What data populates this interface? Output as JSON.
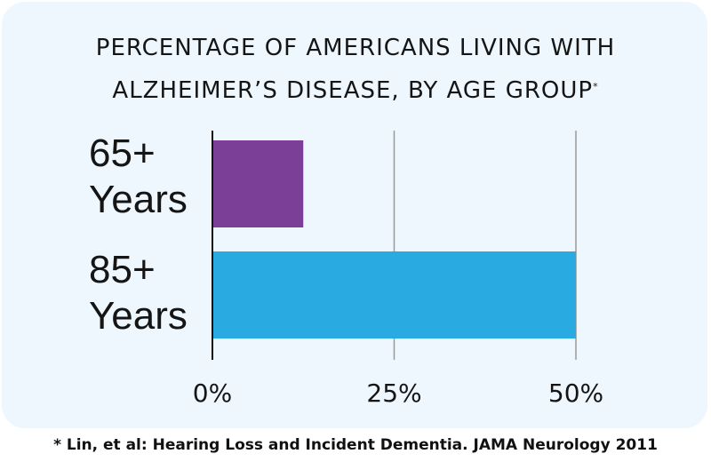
{
  "title_lines": [
    "PERCENTAGE OF AMERICANS LIVING WITH",
    "ALZHEIMER’S DISEASE, BY AGE GROUP"
  ],
  "title_marker": "*",
  "footnote": "* Lin, et al: Hearing Loss and Incident Dementia. JAMA Neurology 2011",
  "colors": {
    "card_background": "#eef7fd",
    "bar_65": "#7b3f98",
    "bar_85": "#29abe2",
    "gridline": "#999999",
    "axis": "#111111"
  },
  "chart_data": {
    "type": "bar",
    "orientation": "horizontal",
    "title": "PERCENTAGE OF AMERICANS LIVING WITH ALZHEIMER’S DISEASE, BY AGE GROUP*",
    "categories": [
      {
        "line1": "65+",
        "line2": "Years"
      },
      {
        "line1": "85+",
        "line2": "Years"
      }
    ],
    "values": [
      12.5,
      50
    ],
    "bar_colors": [
      "#7b3f98",
      "#29abe2"
    ],
    "xlim": [
      0,
      50
    ],
    "xticks": [
      0,
      25,
      50
    ],
    "xtick_labels": [
      "0%",
      "25%",
      "50%"
    ],
    "grid": true,
    "xlabel": "",
    "ylabel": ""
  }
}
